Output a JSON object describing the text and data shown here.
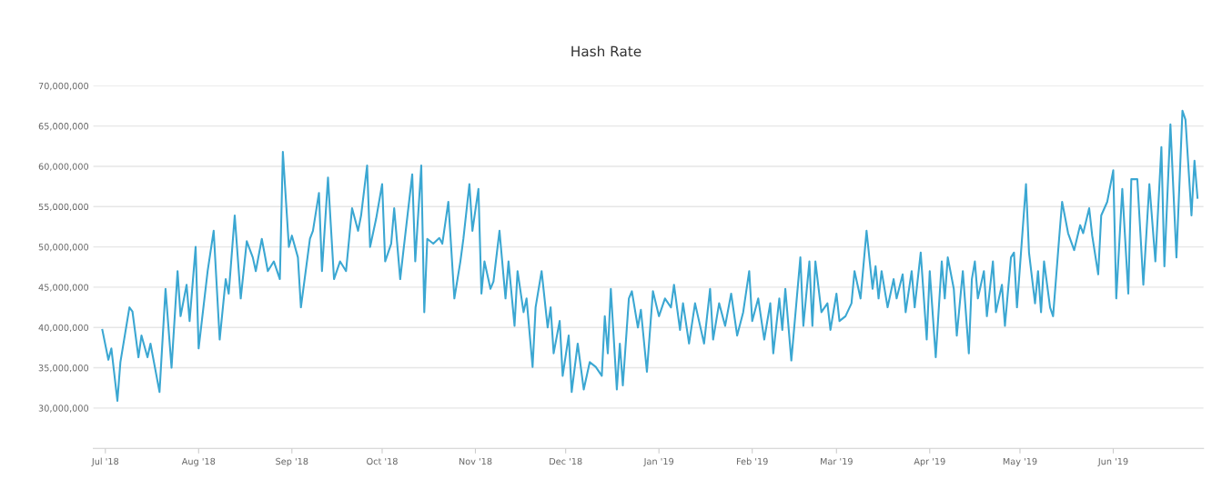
{
  "chart_data": {
    "type": "line",
    "title": "Hash Rate",
    "x": [
      "2018-06-30",
      "2018-07-02",
      "2018-07-03",
      "2018-07-05",
      "2018-07-06",
      "2018-07-09",
      "2018-07-10",
      "2018-07-12",
      "2018-07-13",
      "2018-07-15",
      "2018-07-16",
      "2018-07-19",
      "2018-07-21",
      "2018-07-23",
      "2018-07-25",
      "2018-07-26",
      "2018-07-28",
      "2018-07-29",
      "2018-07-31",
      "2018-08-01",
      "2018-08-04",
      "2018-08-06",
      "2018-08-08",
      "2018-08-10",
      "2018-08-11",
      "2018-08-13",
      "2018-08-15",
      "2018-08-17",
      "2018-08-19",
      "2018-08-20",
      "2018-08-22",
      "2018-08-24",
      "2018-08-26",
      "2018-08-28",
      "2018-08-29",
      "2018-08-31",
      "2018-09-01",
      "2018-09-03",
      "2018-09-04",
      "2018-09-07",
      "2018-09-08",
      "2018-09-10",
      "2018-09-11",
      "2018-09-13",
      "2018-09-15",
      "2018-09-17",
      "2018-09-19",
      "2018-09-21",
      "2018-09-23",
      "2018-09-24",
      "2018-09-26",
      "2018-09-27",
      "2018-09-29",
      "2018-10-01",
      "2018-10-02",
      "2018-10-04",
      "2018-10-05",
      "2018-10-07",
      "2018-10-08",
      "2018-10-11",
      "2018-10-12",
      "2018-10-14",
      "2018-10-15",
      "2018-10-16",
      "2018-10-18",
      "2018-10-20",
      "2018-10-21",
      "2018-10-23",
      "2018-10-25",
      "2018-10-27",
      "2018-10-28",
      "2018-10-30",
      "2018-10-31",
      "2018-11-02",
      "2018-11-03",
      "2018-11-04",
      "2018-11-06",
      "2018-11-07",
      "2018-11-09",
      "2018-11-11",
      "2018-11-12",
      "2018-11-14",
      "2018-11-15",
      "2018-11-17",
      "2018-11-18",
      "2018-11-20",
      "2018-11-21",
      "2018-11-23",
      "2018-11-25",
      "2018-11-26",
      "2018-11-27",
      "2018-11-29",
      "2018-11-30",
      "2018-12-02",
      "2018-12-03",
      "2018-12-05",
      "2018-12-07",
      "2018-12-09",
      "2018-12-11",
      "2018-12-13",
      "2018-12-14",
      "2018-12-15",
      "2018-12-16",
      "2018-12-18",
      "2018-12-19",
      "2018-12-20",
      "2018-12-22",
      "2018-12-23",
      "2018-12-25",
      "2018-12-26",
      "2018-12-28",
      "2018-12-30",
      "2019-01-01",
      "2019-01-03",
      "2019-01-05",
      "2019-01-06",
      "2019-01-08",
      "2019-01-09",
      "2019-01-11",
      "2019-01-13",
      "2019-01-16",
      "2019-01-18",
      "2019-01-19",
      "2019-01-21",
      "2019-01-23",
      "2019-01-25",
      "2019-01-27",
      "2019-01-29",
      "2019-01-31",
      "2019-02-01",
      "2019-02-03",
      "2019-02-05",
      "2019-02-07",
      "2019-02-08",
      "2019-02-10",
      "2019-02-11",
      "2019-02-12",
      "2019-02-14",
      "2019-02-17",
      "2019-02-18",
      "2019-02-20",
      "2019-02-21",
      "2019-02-22",
      "2019-02-24",
      "2019-02-26",
      "2019-02-27",
      "2019-03-01",
      "2019-03-02",
      "2019-03-04",
      "2019-03-06",
      "2019-03-07",
      "2019-03-09",
      "2019-03-11",
      "2019-03-13",
      "2019-03-14",
      "2019-03-15",
      "2019-03-16",
      "2019-03-18",
      "2019-03-20",
      "2019-03-21",
      "2019-03-23",
      "2019-03-24",
      "2019-03-26",
      "2019-03-27",
      "2019-03-29",
      "2019-03-31",
      "2019-04-01",
      "2019-04-03",
      "2019-04-05",
      "2019-04-06",
      "2019-04-07",
      "2019-04-09",
      "2019-04-10",
      "2019-04-12",
      "2019-04-14",
      "2019-04-15",
      "2019-04-16",
      "2019-04-17",
      "2019-04-19",
      "2019-04-20",
      "2019-04-22",
      "2019-04-23",
      "2019-04-25",
      "2019-04-26",
      "2019-04-28",
      "2019-04-29",
      "2019-04-30",
      "2019-05-02",
      "2019-05-03",
      "2019-05-04",
      "2019-05-06",
      "2019-05-07",
      "2019-05-08",
      "2019-05-09",
      "2019-05-11",
      "2019-05-12",
      "2019-05-14",
      "2019-05-15",
      "2019-05-17",
      "2019-05-19",
      "2019-05-21",
      "2019-05-22",
      "2019-05-24",
      "2019-05-25",
      "2019-05-27",
      "2019-05-28",
      "2019-05-30",
      "2019-06-01",
      "2019-06-02",
      "2019-06-04",
      "2019-06-06",
      "2019-06-07",
      "2019-06-09",
      "2019-06-11",
      "2019-06-13",
      "2019-06-15",
      "2019-06-17",
      "2019-06-18",
      "2019-06-20",
      "2019-06-22",
      "2019-06-24",
      "2019-06-25",
      "2019-06-27",
      "2019-06-28",
      "2019-06-29"
    ],
    "series": [
      {
        "color": "#3ba7d2",
        "values": [
          39700000,
          36000000,
          37400000,
          30900000,
          35700000,
          42500000,
          42000000,
          36300000,
          39000000,
          36300000,
          38000000,
          32000000,
          44800000,
          35000000,
          47000000,
          41400000,
          45300000,
          40800000,
          50000000,
          37400000,
          47000000,
          52000000,
          38500000,
          46000000,
          44200000,
          53900000,
          43600000,
          50700000,
          48700000,
          47000000,
          51000000,
          47000000,
          48200000,
          46000000,
          61800000,
          50000000,
          51400000,
          48700000,
          42500000,
          51000000,
          52000000,
          56700000,
          47000000,
          58600000,
          46000000,
          48200000,
          47000000,
          54800000,
          52000000,
          53900000,
          60100000,
          50000000,
          53500000,
          57800000,
          48200000,
          50400000,
          54800000,
          46000000,
          49300000,
          59000000,
          48200000,
          60100000,
          41900000,
          51000000,
          50400000,
          51100000,
          50400000,
          55600000,
          43600000,
          48200000,
          51000000,
          57800000,
          52000000,
          57200000,
          44200000,
          48200000,
          44800000,
          45700000,
          52000000,
          43600000,
          48200000,
          40200000,
          47000000,
          41900000,
          43600000,
          35100000,
          42500000,
          47000000,
          40000000,
          42500000,
          36800000,
          40800000,
          34000000,
          39000000,
          32000000,
          38000000,
          32300000,
          35700000,
          35100000,
          34000000,
          41400000,
          36800000,
          44800000,
          32300000,
          38000000,
          32800000,
          43600000,
          44500000,
          40000000,
          42200000,
          34500000,
          44500000,
          41400000,
          43600000,
          42500000,
          45300000,
          39700000,
          43000000,
          38000000,
          43000000,
          38000000,
          44800000,
          38500000,
          43000000,
          40200000,
          44200000,
          39000000,
          41900000,
          47000000,
          40800000,
          43600000,
          38500000,
          43000000,
          36800000,
          43600000,
          39700000,
          44800000,
          35900000,
          48700000,
          40200000,
          48200000,
          40200000,
          48200000,
          41900000,
          43000000,
          39700000,
          44200000,
          40800000,
          41400000,
          43000000,
          47000000,
          43600000,
          52000000,
          44800000,
          47600000,
          43600000,
          47000000,
          42500000,
          46000000,
          43600000,
          46600000,
          41900000,
          47000000,
          42500000,
          49300000,
          38500000,
          47000000,
          36300000,
          48200000,
          43600000,
          48700000,
          44800000,
          39000000,
          47000000,
          36800000,
          46000000,
          48200000,
          43600000,
          47000000,
          41400000,
          48200000,
          41900000,
          45300000,
          40200000,
          48700000,
          49300000,
          42500000,
          52700000,
          57800000,
          49300000,
          43000000,
          47000000,
          41900000,
          48200000,
          42500000,
          41400000,
          51000000,
          55600000,
          51700000,
          49600000,
          52700000,
          51700000,
          54800000,
          51400000,
          46600000,
          53900000,
          55600000,
          59500000,
          43600000,
          57200000,
          44200000,
          58400000,
          58400000,
          45300000,
          57800000,
          48200000,
          62400000,
          47600000,
          65200000,
          48700000,
          66900000,
          65800000,
          53900000,
          60700000,
          56100000
        ]
      }
    ],
    "xlim": [
      "2018-06-27",
      "2019-07-01"
    ],
    "xticks": [
      {
        "value": "2018-07-01",
        "label": "Jul '18"
      },
      {
        "value": "2018-08-01",
        "label": "Aug '18"
      },
      {
        "value": "2018-09-01",
        "label": "Sep '18"
      },
      {
        "value": "2018-10-01",
        "label": "Oct '18"
      },
      {
        "value": "2018-11-01",
        "label": "Nov '18"
      },
      {
        "value": "2018-12-01",
        "label": "Dec '18"
      },
      {
        "value": "2019-01-01",
        "label": "Jan '19"
      },
      {
        "value": "2019-02-01",
        "label": "Feb '19"
      },
      {
        "value": "2019-03-01",
        "label": "Mar '19"
      },
      {
        "value": "2019-04-01",
        "label": "Apr '19"
      },
      {
        "value": "2019-05-01",
        "label": "May '19"
      },
      {
        "value": "2019-06-01",
        "label": "Jun '19"
      }
    ],
    "ylim": [
      25000000,
      70000000
    ],
    "yticks": [
      {
        "value": 30000000,
        "label": "30,000,000"
      },
      {
        "value": 35000000,
        "label": "35,000,000"
      },
      {
        "value": 40000000,
        "label": "40,000,000"
      },
      {
        "value": 45000000,
        "label": "45,000,000"
      },
      {
        "value": 50000000,
        "label": "50,000,000"
      },
      {
        "value": 55000000,
        "label": "55,000,000"
      },
      {
        "value": 60000000,
        "label": "60,000,000"
      },
      {
        "value": 65000000,
        "label": "65,000,000"
      },
      {
        "value": 70000000,
        "label": "70,000,000"
      }
    ],
    "grid": "y",
    "marker": "none",
    "line_style": "solid"
  }
}
